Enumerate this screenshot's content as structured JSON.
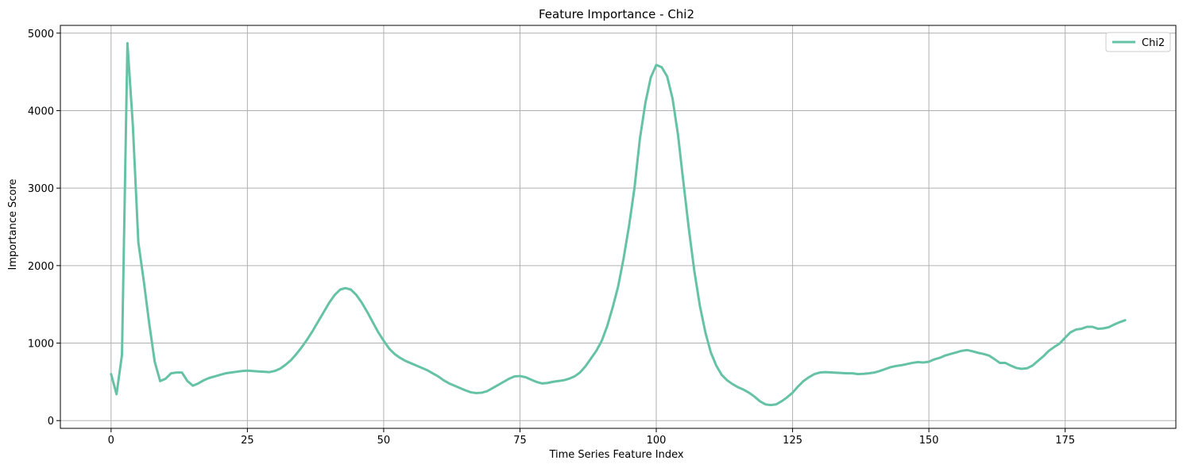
{
  "chart_data": {
    "type": "line",
    "title": "Feature Importance - Chi2",
    "xlabel": "Time Series Feature Index",
    "ylabel": "Importance Score",
    "xlim": [
      -9.3,
      195.3
    ],
    "ylim": [
      -100,
      5100
    ],
    "xticks": [
      0,
      25,
      50,
      75,
      100,
      125,
      150,
      175
    ],
    "yticks": [
      0,
      1000,
      2000,
      3000,
      4000,
      5000
    ],
    "grid": true,
    "legend_position": "top-right",
    "series": [
      {
        "name": "Chi2",
        "color": "#66c2a5",
        "points": [
          [
            0,
            600
          ],
          [
            1,
            340
          ],
          [
            2,
            850
          ],
          [
            3,
            4870
          ],
          [
            4,
            3800
          ],
          [
            5,
            2300
          ],
          [
            6,
            1800
          ],
          [
            7,
            1250
          ],
          [
            8,
            760
          ],
          [
            9,
            510
          ],
          [
            10,
            540
          ],
          [
            11,
            610
          ],
          [
            12,
            620
          ],
          [
            13,
            620
          ],
          [
            14,
            510
          ],
          [
            15,
            450
          ],
          [
            16,
            480
          ],
          [
            17,
            520
          ],
          [
            18,
            550
          ],
          [
            19,
            570
          ],
          [
            20,
            590
          ],
          [
            21,
            610
          ],
          [
            22,
            620
          ],
          [
            23,
            630
          ],
          [
            24,
            640
          ],
          [
            25,
            645
          ],
          [
            26,
            640
          ],
          [
            27,
            635
          ],
          [
            28,
            630
          ],
          [
            29,
            625
          ],
          [
            30,
            640
          ],
          [
            31,
            670
          ],
          [
            32,
            720
          ],
          [
            33,
            780
          ],
          [
            34,
            860
          ],
          [
            35,
            950
          ],
          [
            36,
            1050
          ],
          [
            37,
            1160
          ],
          [
            38,
            1280
          ],
          [
            39,
            1400
          ],
          [
            40,
            1520
          ],
          [
            41,
            1620
          ],
          [
            42,
            1690
          ],
          [
            43,
            1710
          ],
          [
            44,
            1690
          ],
          [
            45,
            1620
          ],
          [
            46,
            1520
          ],
          [
            47,
            1400
          ],
          [
            48,
            1270
          ],
          [
            49,
            1140
          ],
          [
            50,
            1030
          ],
          [
            51,
            930
          ],
          [
            52,
            860
          ],
          [
            53,
            810
          ],
          [
            54,
            770
          ],
          [
            55,
            740
          ],
          [
            56,
            710
          ],
          [
            57,
            680
          ],
          [
            58,
            650
          ],
          [
            59,
            610
          ],
          [
            60,
            570
          ],
          [
            61,
            520
          ],
          [
            62,
            480
          ],
          [
            63,
            450
          ],
          [
            64,
            420
          ],
          [
            65,
            390
          ],
          [
            66,
            365
          ],
          [
            67,
            355
          ],
          [
            68,
            360
          ],
          [
            69,
            380
          ],
          [
            70,
            420
          ],
          [
            71,
            460
          ],
          [
            72,
            500
          ],
          [
            73,
            540
          ],
          [
            74,
            570
          ],
          [
            75,
            575
          ],
          [
            76,
            560
          ],
          [
            77,
            530
          ],
          [
            78,
            500
          ],
          [
            79,
            480
          ],
          [
            80,
            485
          ],
          [
            81,
            500
          ],
          [
            82,
            510
          ],
          [
            83,
            520
          ],
          [
            84,
            540
          ],
          [
            85,
            570
          ],
          [
            86,
            620
          ],
          [
            87,
            700
          ],
          [
            88,
            800
          ],
          [
            89,
            900
          ],
          [
            90,
            1030
          ],
          [
            91,
            1220
          ],
          [
            92,
            1460
          ],
          [
            93,
            1730
          ],
          [
            94,
            2090
          ],
          [
            95,
            2510
          ],
          [
            96,
            3000
          ],
          [
            97,
            3640
          ],
          [
            98,
            4100
          ],
          [
            99,
            4430
          ],
          [
            100,
            4590
          ],
          [
            101,
            4560
          ],
          [
            102,
            4440
          ],
          [
            103,
            4150
          ],
          [
            104,
            3680
          ],
          [
            105,
            3060
          ],
          [
            106,
            2460
          ],
          [
            107,
            1920
          ],
          [
            108,
            1480
          ],
          [
            109,
            1140
          ],
          [
            110,
            880
          ],
          [
            111,
            710
          ],
          [
            112,
            590
          ],
          [
            113,
            520
          ],
          [
            114,
            470
          ],
          [
            115,
            430
          ],
          [
            116,
            400
          ],
          [
            117,
            360
          ],
          [
            118,
            310
          ],
          [
            119,
            250
          ],
          [
            120,
            210
          ],
          [
            121,
            200
          ],
          [
            122,
            210
          ],
          [
            123,
            250
          ],
          [
            124,
            300
          ],
          [
            125,
            360
          ],
          [
            126,
            440
          ],
          [
            127,
            510
          ],
          [
            128,
            560
          ],
          [
            129,
            600
          ],
          [
            130,
            620
          ],
          [
            131,
            625
          ],
          [
            132,
            622
          ],
          [
            133,
            618
          ],
          [
            134,
            614
          ],
          [
            135,
            610
          ],
          [
            136,
            610
          ],
          [
            137,
            600
          ],
          [
            138,
            604
          ],
          [
            139,
            610
          ],
          [
            140,
            620
          ],
          [
            141,
            640
          ],
          [
            142,
            665
          ],
          [
            143,
            690
          ],
          [
            144,
            705
          ],
          [
            145,
            715
          ],
          [
            146,
            730
          ],
          [
            147,
            745
          ],
          [
            148,
            755
          ],
          [
            149,
            750
          ],
          [
            150,
            760
          ],
          [
            151,
            790
          ],
          [
            152,
            810
          ],
          [
            153,
            840
          ],
          [
            154,
            860
          ],
          [
            155,
            880
          ],
          [
            156,
            900
          ],
          [
            157,
            910
          ],
          [
            158,
            895
          ],
          [
            159,
            875
          ],
          [
            160,
            860
          ],
          [
            161,
            840
          ],
          [
            162,
            795
          ],
          [
            163,
            745
          ],
          [
            164,
            745
          ],
          [
            165,
            710
          ],
          [
            166,
            680
          ],
          [
            167,
            668
          ],
          [
            168,
            675
          ],
          [
            169,
            710
          ],
          [
            170,
            770
          ],
          [
            171,
            830
          ],
          [
            172,
            900
          ],
          [
            173,
            950
          ],
          [
            174,
            995
          ],
          [
            175,
            1070
          ],
          [
            176,
            1140
          ],
          [
            177,
            1175
          ],
          [
            178,
            1185
          ],
          [
            179,
            1210
          ],
          [
            180,
            1210
          ],
          [
            181,
            1185
          ],
          [
            182,
            1190
          ],
          [
            183,
            1205
          ],
          [
            184,
            1240
          ],
          [
            185,
            1270
          ],
          [
            186,
            1295
          ]
        ]
      }
    ]
  }
}
